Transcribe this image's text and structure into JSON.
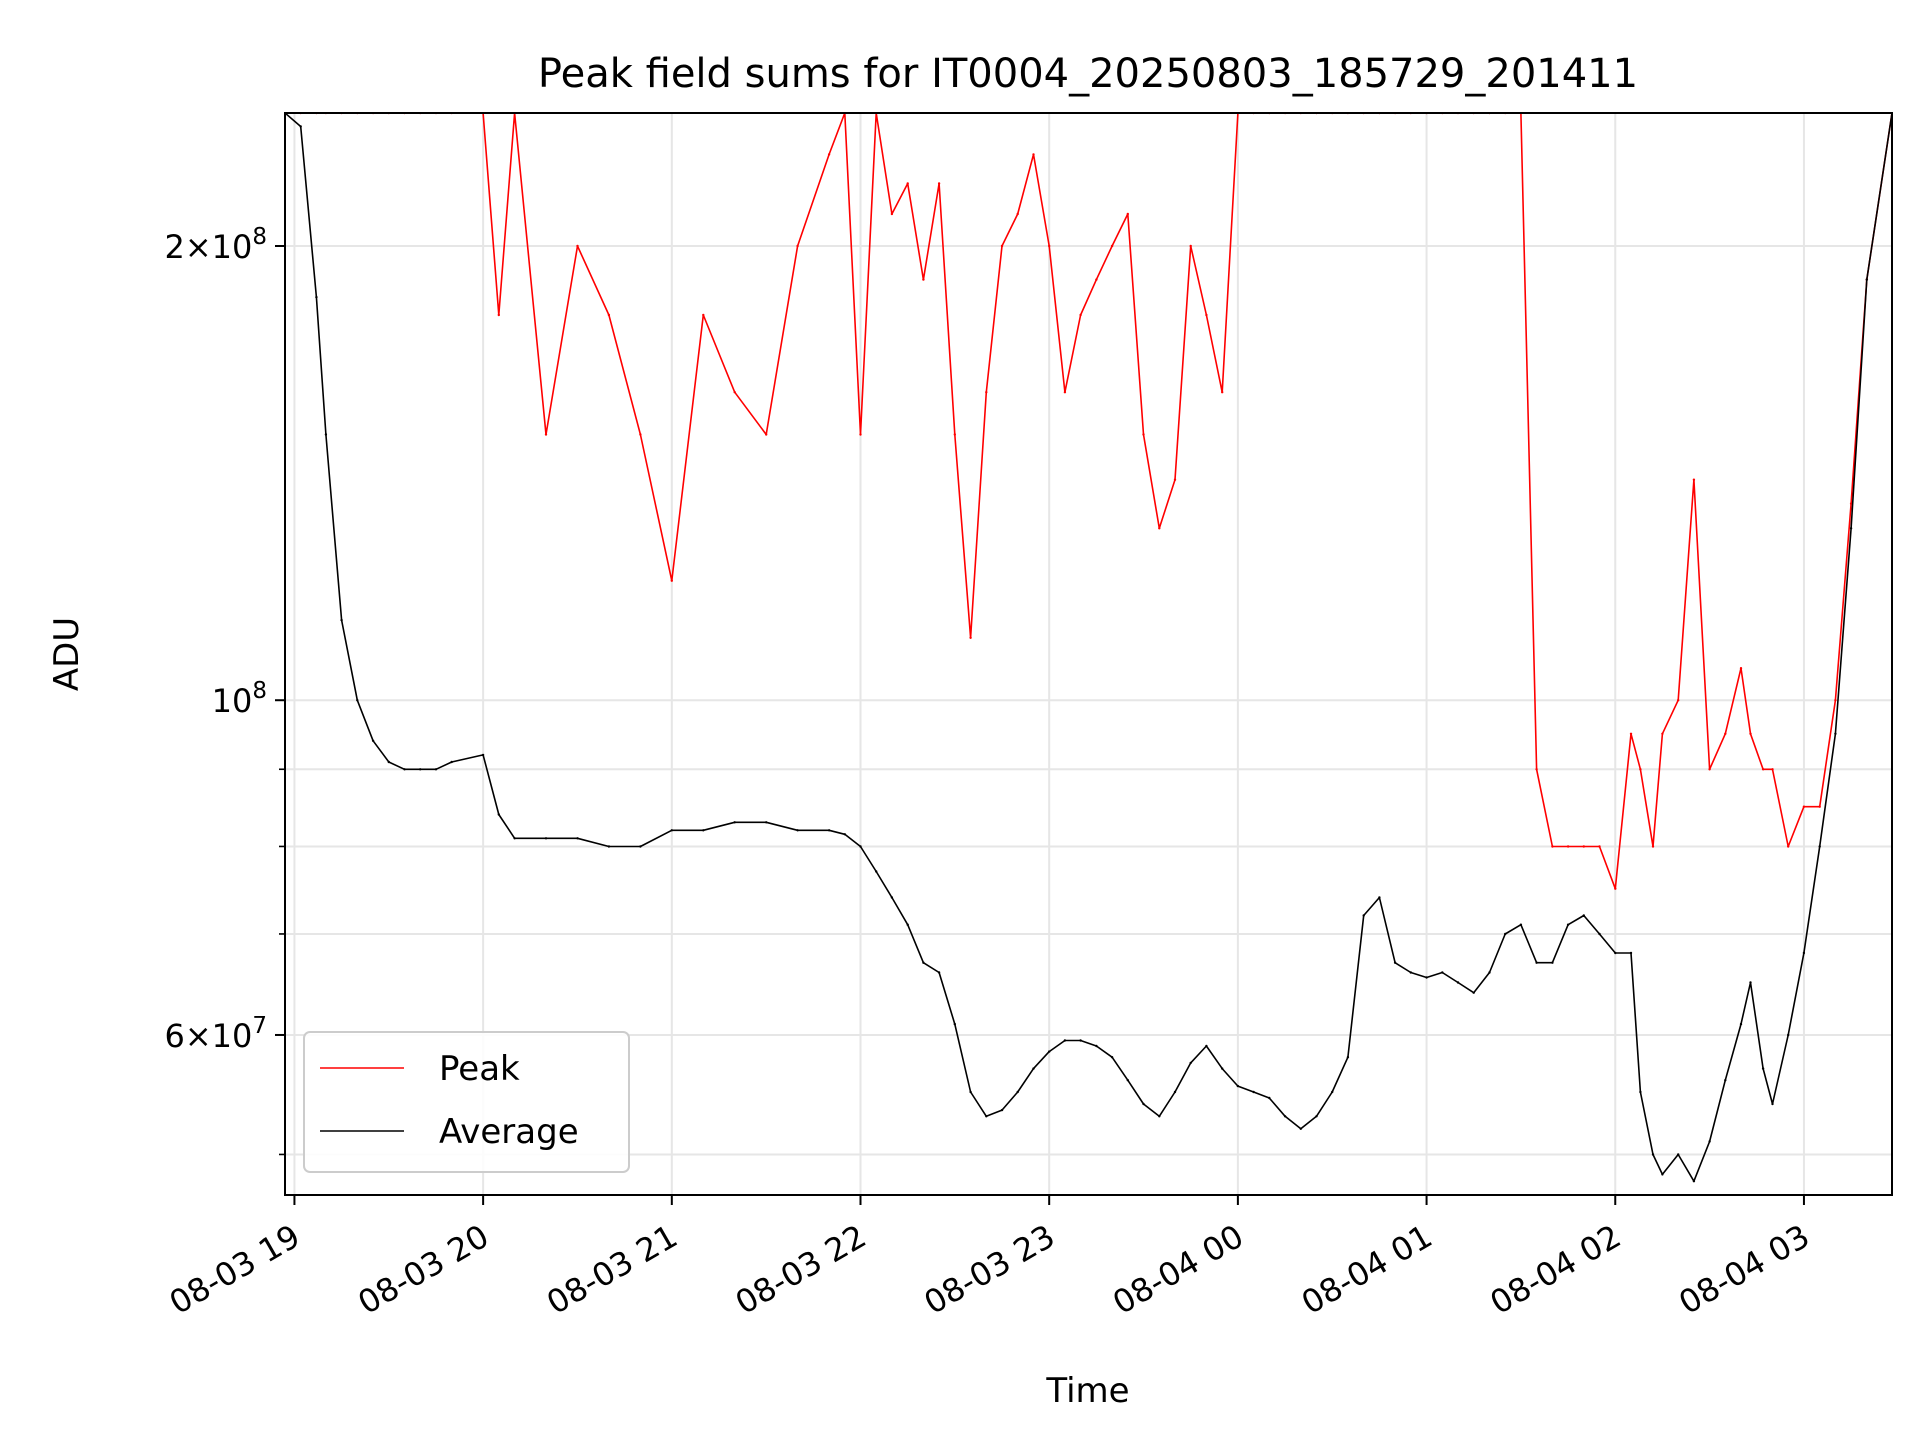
{
  "chart_data": {
    "type": "line",
    "title": "Peak field sums for IT0004_20250803_185729_201411",
    "xlabel": "Time",
    "ylabel": "ADU",
    "y_scale": "log",
    "ylim": [
      47000000,
      245000000
    ],
    "xlim": [
      "2025-08-03 18:57",
      "2025-08-04 03:28"
    ],
    "x_ticks": [
      {
        "t": "2025-08-03 19:00",
        "label": "08-03 19"
      },
      {
        "t": "2025-08-03 20:00",
        "label": "08-03 20"
      },
      {
        "t": "2025-08-03 21:00",
        "label": "08-03 21"
      },
      {
        "t": "2025-08-03 22:00",
        "label": "08-03 22"
      },
      {
        "t": "2025-08-03 23:00",
        "label": "08-03 23"
      },
      {
        "t": "2025-08-04 00:00",
        "label": "08-04 00"
      },
      {
        "t": "2025-08-04 01:00",
        "label": "08-04 01"
      },
      {
        "t": "2025-08-04 02:00",
        "label": "08-04 02"
      },
      {
        "t": "2025-08-04 03:00",
        "label": "08-04 03"
      }
    ],
    "y_major_ticks": [
      {
        "value": 60000000,
        "mantissa": "6",
        "base": "10",
        "exp": "7"
      },
      {
        "value": 100000000,
        "mantissa": "",
        "base": "10",
        "exp": "8"
      },
      {
        "value": 200000000,
        "mantissa": "2",
        "base": "10",
        "exp": "8"
      }
    ],
    "y_minor_ticks": [
      50000000,
      70000000,
      80000000,
      90000000
    ],
    "grid": true,
    "legend_position": "lower-left",
    "series": [
      {
        "name": "Average",
        "color": "#000000",
        "x": [
          "2025-08-03 18:57",
          "2025-08-03 19:02",
          "2025-08-03 19:07",
          "2025-08-03 19:10",
          "2025-08-03 19:15",
          "2025-08-03 19:20",
          "2025-08-03 19:25",
          "2025-08-03 19:30",
          "2025-08-03 19:35",
          "2025-08-03 19:40",
          "2025-08-03 19:45",
          "2025-08-03 19:50",
          "2025-08-03 20:00",
          "2025-08-03 20:05",
          "2025-08-03 20:10",
          "2025-08-03 20:20",
          "2025-08-03 20:30",
          "2025-08-03 20:40",
          "2025-08-03 20:50",
          "2025-08-03 21:00",
          "2025-08-03 21:10",
          "2025-08-03 21:20",
          "2025-08-03 21:30",
          "2025-08-03 21:40",
          "2025-08-03 21:50",
          "2025-08-03 21:55",
          "2025-08-03 22:00",
          "2025-08-03 22:05",
          "2025-08-03 22:10",
          "2025-08-03 22:15",
          "2025-08-03 22:20",
          "2025-08-03 22:25",
          "2025-08-03 22:30",
          "2025-08-03 22:35",
          "2025-08-03 22:40",
          "2025-08-03 22:45",
          "2025-08-03 22:50",
          "2025-08-03 22:55",
          "2025-08-03 23:00",
          "2025-08-03 23:05",
          "2025-08-03 23:10",
          "2025-08-03 23:15",
          "2025-08-03 23:20",
          "2025-08-03 23:25",
          "2025-08-03 23:30",
          "2025-08-03 23:35",
          "2025-08-03 23:40",
          "2025-08-03 23:45",
          "2025-08-03 23:50",
          "2025-08-03 23:55",
          "2025-08-04 00:00",
          "2025-08-04 00:05",
          "2025-08-04 00:10",
          "2025-08-04 00:15",
          "2025-08-04 00:20",
          "2025-08-04 00:25",
          "2025-08-04 00:30",
          "2025-08-04 00:35",
          "2025-08-04 00:40",
          "2025-08-04 00:45",
          "2025-08-04 00:50",
          "2025-08-04 00:55",
          "2025-08-04 01:00",
          "2025-08-04 01:05",
          "2025-08-04 01:10",
          "2025-08-04 01:15",
          "2025-08-04 01:20",
          "2025-08-04 01:25",
          "2025-08-04 01:30",
          "2025-08-04 01:35",
          "2025-08-04 01:40",
          "2025-08-04 01:45",
          "2025-08-04 01:50",
          "2025-08-04 01:55",
          "2025-08-04 02:00",
          "2025-08-04 02:05",
          "2025-08-04 02:08",
          "2025-08-04 02:12",
          "2025-08-04 02:15",
          "2025-08-04 02:20",
          "2025-08-04 02:25",
          "2025-08-04 02:30",
          "2025-08-04 02:35",
          "2025-08-04 02:40",
          "2025-08-04 02:43",
          "2025-08-04 02:47",
          "2025-08-04 02:50",
          "2025-08-04 02:55",
          "2025-08-04 03:00",
          "2025-08-04 03:05",
          "2025-08-04 03:10",
          "2025-08-04 03:15",
          "2025-08-04 03:20",
          "2025-08-04 03:28"
        ],
        "y": [
          245000000,
          240000000,
          185000000,
          150000000,
          113000000,
          100000000,
          94000000,
          91000000,
          90000000,
          90000000,
          90000000,
          91000000,
          92000000,
          84000000,
          81000000,
          81000000,
          81000000,
          80000000,
          80000000,
          82000000,
          82000000,
          83000000,
          83000000,
          82000000,
          82000000,
          81500000,
          80000000,
          77000000,
          74000000,
          71000000,
          67000000,
          66000000,
          61000000,
          55000000,
          53000000,
          53500000,
          55000000,
          57000000,
          58500000,
          59500000,
          59500000,
          59000000,
          58000000,
          56000000,
          54000000,
          53000000,
          55000000,
          57500000,
          59000000,
          57000000,
          55500000,
          55000000,
          54500000,
          53000000,
          52000000,
          53000000,
          55000000,
          58000000,
          72000000,
          74000000,
          67000000,
          66000000,
          65500000,
          66000000,
          65000000,
          64000000,
          66000000,
          70000000,
          71000000,
          67000000,
          67000000,
          71000000,
          72000000,
          70000000,
          68000000,
          68000000,
          55000000,
          50000000,
          48500000,
          50000000,
          48000000,
          51000000,
          56000000,
          61000000,
          65000000,
          57000000,
          54000000,
          60000000,
          68000000,
          80000000,
          95000000,
          130000000,
          190000000,
          245000000
        ]
      },
      {
        "name": "Peak",
        "color": "#ff0000",
        "x": [
          "2025-08-03 18:57",
          "2025-08-03 19:02",
          "2025-08-03 19:07",
          "2025-08-03 19:10",
          "2025-08-03 19:15",
          "2025-08-03 19:20",
          "2025-08-03 19:25",
          "2025-08-03 19:30",
          "2025-08-03 19:35",
          "2025-08-03 19:40",
          "2025-08-03 19:45",
          "2025-08-03 19:50",
          "2025-08-03 20:00",
          "2025-08-03 20:05",
          "2025-08-03 20:10",
          "2025-08-03 20:20",
          "2025-08-03 20:30",
          "2025-08-03 20:40",
          "2025-08-03 20:50",
          "2025-08-03 21:00",
          "2025-08-03 21:10",
          "2025-08-03 21:20",
          "2025-08-03 21:30",
          "2025-08-03 21:40",
          "2025-08-03 21:50",
          "2025-08-03 21:55",
          "2025-08-03 22:00",
          "2025-08-03 22:05",
          "2025-08-03 22:10",
          "2025-08-03 22:15",
          "2025-08-03 22:20",
          "2025-08-03 22:25",
          "2025-08-03 22:30",
          "2025-08-03 22:35",
          "2025-08-03 22:40",
          "2025-08-03 22:45",
          "2025-08-03 22:50",
          "2025-08-03 22:55",
          "2025-08-03 23:00",
          "2025-08-03 23:05",
          "2025-08-03 23:10",
          "2025-08-03 23:15",
          "2025-08-03 23:20",
          "2025-08-03 23:25",
          "2025-08-03 23:30",
          "2025-08-03 23:35",
          "2025-08-03 23:40",
          "2025-08-03 23:45",
          "2025-08-03 23:50",
          "2025-08-03 23:55",
          "2025-08-04 00:00",
          "2025-08-04 00:05",
          "2025-08-04 00:10",
          "2025-08-04 00:15",
          "2025-08-04 00:20",
          "2025-08-04 00:25",
          "2025-08-04 00:30",
          "2025-08-04 00:35",
          "2025-08-04 00:40",
          "2025-08-04 00:45",
          "2025-08-04 00:50",
          "2025-08-04 00:55",
          "2025-08-04 01:00",
          "2025-08-04 01:05",
          "2025-08-04 01:10",
          "2025-08-04 01:15",
          "2025-08-04 01:20",
          "2025-08-04 01:25",
          "2025-08-04 01:30",
          "2025-08-04 01:35",
          "2025-08-04 01:40",
          "2025-08-04 01:45",
          "2025-08-04 01:50",
          "2025-08-04 01:55",
          "2025-08-04 02:00",
          "2025-08-04 02:05",
          "2025-08-04 02:08",
          "2025-08-04 02:12",
          "2025-08-04 02:15",
          "2025-08-04 02:20",
          "2025-08-04 02:25",
          "2025-08-04 02:30",
          "2025-08-04 02:35",
          "2025-08-04 02:40",
          "2025-08-04 02:43",
          "2025-08-04 02:47",
          "2025-08-04 02:50",
          "2025-08-04 02:55",
          "2025-08-04 03:00",
          "2025-08-04 03:05",
          "2025-08-04 03:10",
          "2025-08-04 03:15",
          "2025-08-04 03:20",
          "2025-08-04 03:28"
        ],
        "y": [
          245000000,
          245000000,
          245000000,
          245000000,
          245000000,
          245000000,
          245000000,
          245000000,
          245000000,
          245000000,
          245000000,
          245000000,
          245000000,
          180000000,
          245000000,
          150000000,
          200000000,
          180000000,
          150000000,
          120000000,
          180000000,
          160000000,
          150000000,
          200000000,
          230000000,
          245000000,
          150000000,
          245000000,
          210000000,
          220000000,
          190000000,
          220000000,
          150000000,
          110000000,
          160000000,
          200000000,
          210000000,
          230000000,
          200000000,
          160000000,
          180000000,
          190000000,
          200000000,
          210000000,
          150000000,
          130000000,
          140000000,
          200000000,
          180000000,
          160000000,
          245000000,
          245000000,
          245000000,
          245000000,
          245000000,
          245000000,
          245000000,
          245000000,
          245000000,
          245000000,
          245000000,
          245000000,
          245000000,
          245000000,
          245000000,
          245000000,
          245000000,
          245000000,
          245000000,
          90000000,
          80000000,
          80000000,
          80000000,
          80000000,
          75000000,
          95000000,
          90000000,
          80000000,
          95000000,
          100000000,
          140000000,
          90000000,
          95000000,
          105000000,
          95000000,
          90000000,
          90000000,
          80000000,
          85000000,
          85000000,
          100000000,
          135000000,
          190000000,
          245000000
        ]
      }
    ]
  }
}
